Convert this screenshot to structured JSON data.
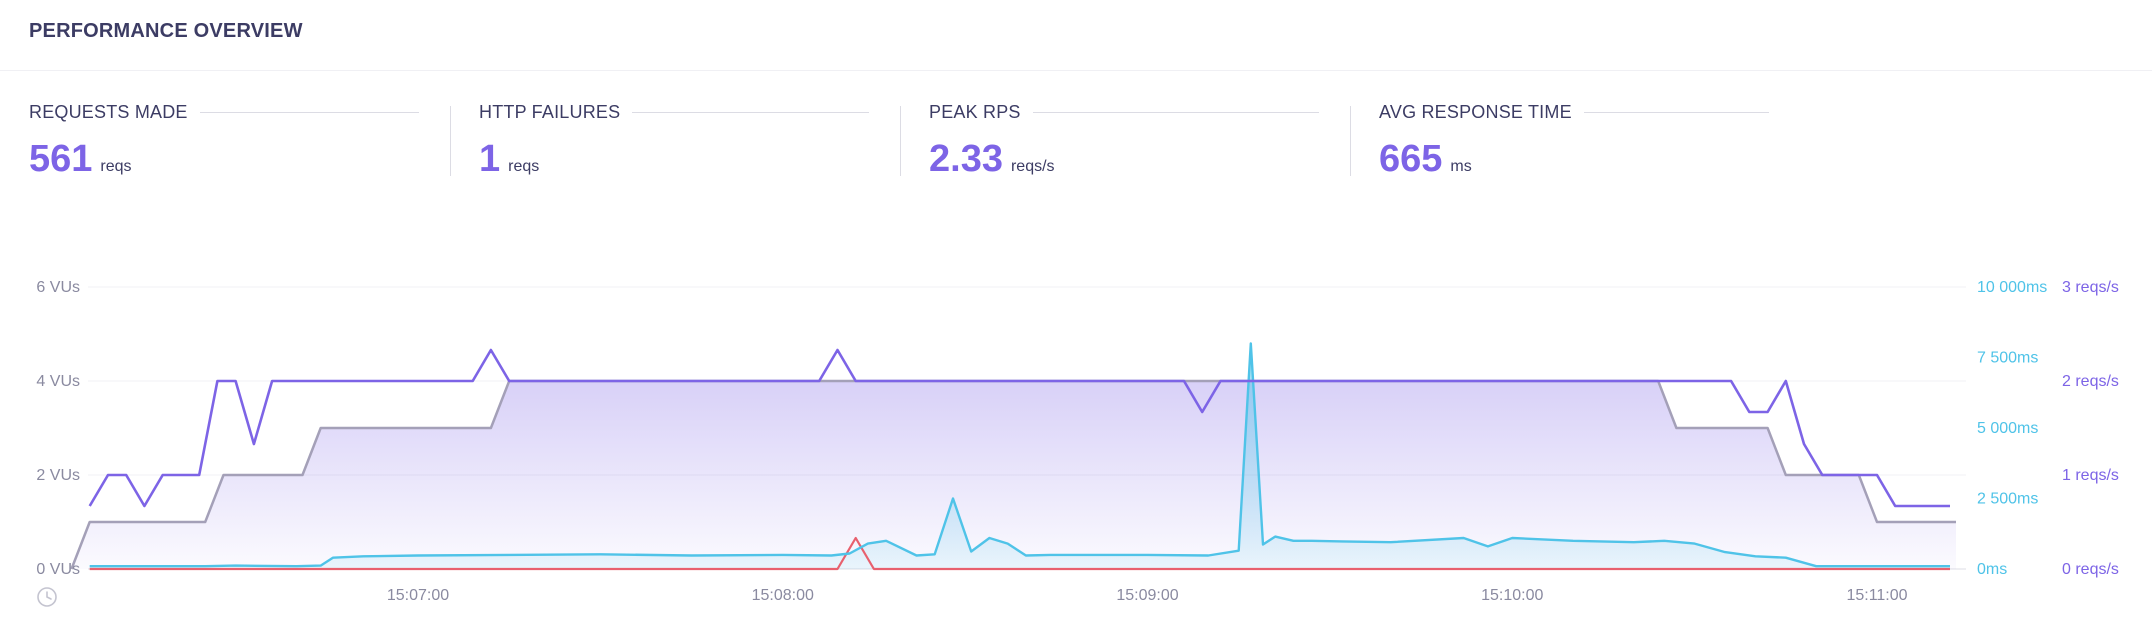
{
  "header": {
    "title": "PERFORMANCE OVERVIEW"
  },
  "stats": [
    {
      "label": "REQUESTS MADE",
      "value": "561",
      "unit": "reqs"
    },
    {
      "label": "HTTP FAILURES",
      "value": "1",
      "unit": "reqs"
    },
    {
      "label": "PEAK RPS",
      "value": "2.33",
      "unit": "reqs/s"
    },
    {
      "label": "AVG RESPONSE TIME",
      "value": "665",
      "unit": "ms"
    }
  ],
  "colors": {
    "vus": "#a4a0b8",
    "rps": "#7d64e6",
    "response_time": "#4fc3e8",
    "failures": "#e8606e",
    "accent": "#7d64e6"
  },
  "icons": {
    "time_axis": "clock-icon"
  },
  "chart_data": {
    "type": "line",
    "x_ticks": [
      "15:07:00",
      "15:08:00",
      "15:09:00",
      "15:10:00",
      "15:11:00"
    ],
    "x_range": [
      "15:06:03",
      "15:11:13"
    ],
    "y_axes": {
      "vus": {
        "ticks": [
          "0 VUs",
          "2 VUs",
          "4 VUs",
          "6 VUs"
        ],
        "range": [
          0,
          6
        ]
      },
      "response_time": {
        "ticks": [
          "0ms",
          "2 500ms",
          "5 000ms",
          "7 500ms",
          "10 000ms"
        ],
        "range": [
          0,
          10000
        ]
      },
      "rps": {
        "ticks": [
          "0 reqs/s",
          "1 reqs/s",
          "2 reqs/s",
          "3 reqs/s"
        ],
        "range": [
          0,
          3
        ]
      }
    },
    "grid": true,
    "series": [
      {
        "key": "vus",
        "axis": "vus",
        "x": [
          "15:06:03",
          "15:06:06",
          "15:06:25",
          "15:06:28",
          "15:06:41",
          "15:06:44",
          "15:06:57",
          "15:07:00",
          "15:07:12",
          "15:07:15",
          "15:08:18",
          "15:08:21",
          "15:10:24",
          "15:10:27",
          "15:10:42",
          "15:10:45",
          "15:10:57",
          "15:11:00",
          "15:11:13"
        ],
        "y": [
          0,
          1,
          1,
          2,
          2,
          3,
          3,
          3,
          3,
          4,
          4,
          4,
          4,
          3,
          3,
          2,
          2,
          1,
          1
        ]
      },
      {
        "key": "rps",
        "axis": "rps",
        "x": [
          "15:06:06",
          "15:06:09",
          "15:06:12",
          "15:06:15",
          "15:06:18",
          "15:06:21",
          "15:06:24",
          "15:06:27",
          "15:06:30",
          "15:06:33",
          "15:06:36",
          "15:06:39",
          "15:06:42",
          "15:07:00",
          "15:07:09",
          "15:07:12",
          "15:07:15",
          "15:08:06",
          "15:08:09",
          "15:08:12",
          "15:09:06",
          "15:09:09",
          "15:09:12",
          "15:10:33",
          "15:10:36",
          "15:10:39",
          "15:10:42",
          "15:10:45",
          "15:10:48",
          "15:10:51",
          "15:10:54",
          "15:10:57",
          "15:11:00",
          "15:11:03",
          "15:11:06",
          "15:11:09",
          "15:11:12"
        ],
        "y": [
          0.67,
          1,
          1,
          0.67,
          1,
          1,
          1,
          2,
          2,
          1.33,
          2,
          2,
          2,
          2,
          2,
          2.33,
          2,
          2,
          2.33,
          2,
          2,
          1.67,
          2,
          2,
          2,
          1.67,
          1.67,
          2,
          1.33,
          1,
          1,
          1,
          1,
          0.67,
          0.67,
          0.67,
          0.67
        ]
      },
      {
        "key": "response_time",
        "axis": "response_time",
        "x": [
          "15:06:06",
          "15:06:15",
          "15:06:25",
          "15:06:30",
          "15:06:40",
          "15:06:44",
          "15:06:46",
          "15:06:51",
          "15:07:00",
          "15:07:15",
          "15:07:30",
          "15:07:45",
          "15:08:00",
          "15:08:08",
          "15:08:11",
          "15:08:14",
          "15:08:17",
          "15:08:22",
          "15:08:25",
          "15:08:28",
          "15:08:31",
          "15:08:34",
          "15:08:37",
          "15:08:40",
          "15:08:44",
          "15:09:00",
          "15:09:10",
          "15:09:15",
          "15:09:17",
          "15:09:19",
          "15:09:21",
          "15:09:24",
          "15:09:27",
          "15:09:32",
          "15:09:40",
          "15:09:52",
          "15:09:56",
          "15:10:00",
          "15:10:10",
          "15:10:20",
          "15:10:25",
          "15:10:30",
          "15:10:35",
          "15:10:40",
          "15:10:45",
          "15:10:50",
          "15:11:12"
        ],
        "y": [
          100,
          100,
          100,
          120,
          100,
          120,
          400,
          450,
          480,
          500,
          520,
          480,
          500,
          480,
          550,
          900,
          1000,
          480,
          520,
          2500,
          620,
          1100,
          900,
          480,
          500,
          500,
          480,
          650,
          8000,
          870,
          1150,
          1000,
          1000,
          980,
          950,
          1100,
          800,
          1100,
          1000,
          950,
          1000,
          900,
          600,
          450,
          400,
          100,
          100
        ]
      },
      {
        "key": "failures",
        "axis": "rps",
        "x": [
          "15:06:06",
          "15:08:09",
          "15:08:12",
          "15:08:15",
          "15:11:12"
        ],
        "y": [
          0,
          0,
          0.33,
          0,
          0
        ]
      }
    ]
  }
}
